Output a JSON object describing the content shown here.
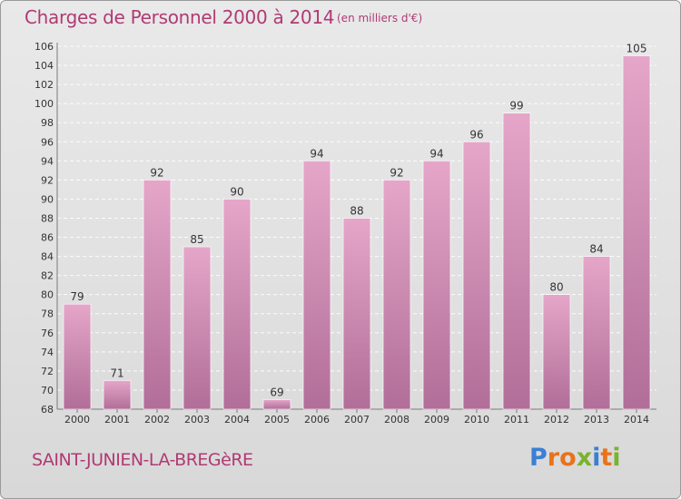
{
  "header": {
    "title": "Charges de Personnel 2000 à 2014",
    "subtitle": "(en milliers d'€)"
  },
  "footer": {
    "location": "SAINT-JUNIEN-LA-BREGèRE",
    "logo_letters": [
      "P",
      "r",
      "o",
      "x",
      "i",
      "t",
      "i"
    ],
    "logo_colors": [
      "#3a7fd5",
      "#e8731c",
      "#e8731c",
      "#7ab32e",
      "#3a7fd5",
      "#e8731c",
      "#7ab32e"
    ]
  },
  "colors": {
    "bar_top": "#e5a6c9",
    "bar_bottom": "#b16e98",
    "text": "#b03a74",
    "axis_text": "#333333"
  },
  "chart_data": {
    "type": "bar",
    "title": "Charges de Personnel 2000 à 2014",
    "subtitle": "(en milliers d'€)",
    "categories": [
      "2000",
      "2001",
      "2002",
      "2003",
      "2004",
      "2005",
      "2006",
      "2007",
      "2008",
      "2009",
      "2010",
      "2011",
      "2012",
      "2013",
      "2014"
    ],
    "values": [
      79,
      71,
      92,
      85,
      90,
      69,
      94,
      88,
      92,
      94,
      96,
      99,
      80,
      84,
      105
    ],
    "ylim": [
      68,
      106
    ],
    "yticks": [
      68,
      70,
      72,
      74,
      76,
      78,
      80,
      82,
      84,
      86,
      88,
      90,
      92,
      94,
      96,
      98,
      100,
      102,
      104,
      106
    ],
    "grid": true,
    "xlabel": "",
    "ylabel": ""
  }
}
